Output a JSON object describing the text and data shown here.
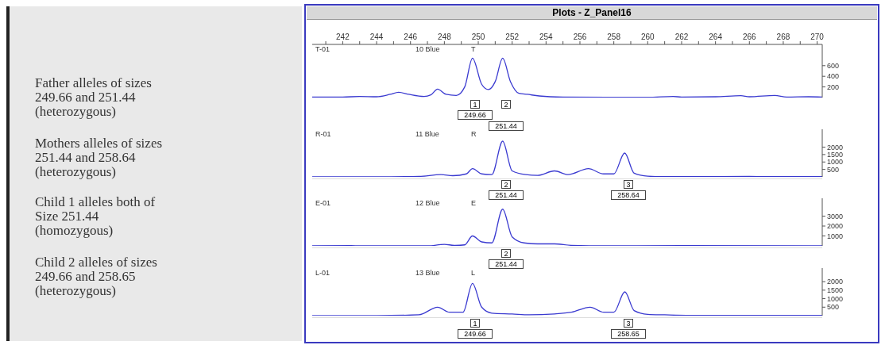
{
  "chart_data": [
    {
      "type": "other",
      "annotations": [
        "Father alleles of sizes\n249.66 and 251.44\n(heterozygous)",
        "Mothers alleles of sizes\n251.44 and 258.64\n(heterozygous)",
        "Child 1 alleles both of\nSize 251.44\n(homozygous)",
        "Child 2 alleles of sizes\n249.66 and 258.65\n(heterozygous)"
      ]
    },
    {
      "type": "line",
      "title": "Plots - Z_Panel16",
      "color": "#3a3ad0",
      "marker": "none",
      "x": [
        240.2,
        242,
        243,
        244,
        244.8,
        245.3,
        245.9,
        246.8,
        247.2,
        247.6,
        248.1,
        248.7,
        249.2,
        249.66,
        250.2,
        250.6,
        251,
        251.44,
        251.9,
        252.4,
        252.9,
        253.6,
        255,
        258,
        260,
        261.5,
        262,
        264,
        265.5,
        266,
        267.5,
        268.2,
        269.5,
        270.3
      ],
      "values": [
        10,
        10,
        20,
        15,
        60,
        100,
        60,
        20,
        50,
        160,
        60,
        40,
        200,
        740,
        250,
        150,
        300,
        740,
        300,
        80,
        60,
        30,
        10,
        5,
        5,
        20,
        10,
        15,
        35,
        15,
        40,
        10,
        15,
        10
      ],
      "xlim": [
        240.2,
        270.3
      ],
      "xticks": [
        {
          "value": 241,
          "label": null
        },
        242,
        {
          "value": 243,
          "label": null
        },
        244,
        {
          "value": 245,
          "label": null
        },
        246,
        {
          "value": 247,
          "label": null
        },
        248,
        {
          "value": 249,
          "label": null
        },
        250,
        {
          "value": 251,
          "label": null
        },
        252,
        {
          "value": 253,
          "label": null
        },
        254,
        {
          "value": 255,
          "label": null
        },
        256,
        {
          "value": 257,
          "label": null
        },
        258,
        {
          "value": 259,
          "label": null
        },
        260,
        {
          "value": 261,
          "label": null
        },
        262,
        {
          "value": 263,
          "label": null
        },
        264,
        {
          "value": 265,
          "label": null
        },
        266,
        {
          "value": 267,
          "label": null
        },
        268,
        {
          "value": 269,
          "label": null
        },
        270
      ],
      "ylim": [
        0,
        1000
      ],
      "yticks": [
        200,
        400,
        600
      ],
      "annotations": [
        "T-01",
        "10 Blue",
        "T",
        "1",
        "249.66",
        "2",
        "251.44"
      ]
    },
    {
      "type": "line",
      "color": "#3a3ad0",
      "marker": "none",
      "tick_labels": "y",
      "x": [
        240.2,
        244,
        246.5,
        247.8,
        248.5,
        249.3,
        249.66,
        250.2,
        250.8,
        251.44,
        252,
        252.8,
        253.5,
        254.5,
        255.3,
        256.5,
        257.4,
        258,
        258.64,
        259.2,
        260,
        261,
        264,
        266,
        267,
        270.3
      ],
      "values": [
        0,
        0,
        30,
        150,
        80,
        200,
        550,
        200,
        150,
        2400,
        400,
        150,
        100,
        400,
        150,
        550,
        200,
        200,
        1600,
        250,
        50,
        20,
        20,
        30,
        20,
        20
      ],
      "xlim": [
        240.2,
        270.3
      ],
      "ylim": [
        0,
        3200
      ],
      "yticks": [
        500,
        1000,
        1500,
        2000
      ],
      "annotations": [
        "R-01",
        "11 Blue",
        "R",
        "2",
        "251.44",
        "3",
        "258.64"
      ]
    },
    {
      "type": "line",
      "color": "#3a3ad0",
      "marker": "none",
      "tick_labels": "y",
      "x": [
        240.2,
        242.5,
        243,
        247,
        248,
        248.6,
        249.2,
        249.66,
        250.2,
        250.8,
        251.44,
        252,
        252.7,
        253.5,
        254.5,
        255.5,
        258,
        262,
        270.3
      ],
      "values": [
        0,
        30,
        0,
        0,
        150,
        50,
        100,
        1000,
        400,
        300,
        3700,
        900,
        300,
        200,
        200,
        50,
        0,
        20,
        0
      ],
      "xlim": [
        240.2,
        270.3
      ],
      "ylim": [
        0,
        4800
      ],
      "yticks": [
        1000,
        2000,
        3000
      ],
      "annotations": [
        "E-01",
        "12 Blue",
        "E",
        "2",
        "251.44"
      ]
    },
    {
      "type": "line",
      "color": "#3a3ad0",
      "marker": "none",
      "tick_labels": "y",
      "x": [
        240.2,
        244,
        246.5,
        247.6,
        248.3,
        249.1,
        249.66,
        250.2,
        250.8,
        252,
        253,
        254.5,
        255.5,
        256.6,
        257.4,
        258,
        258.65,
        259.2,
        260,
        261,
        262.5,
        270.3
      ],
      "values": [
        0,
        0,
        50,
        500,
        200,
        200,
        1900,
        500,
        150,
        100,
        50,
        100,
        200,
        500,
        200,
        200,
        1400,
        300,
        80,
        50,
        20,
        20
      ],
      "xlim": [
        240.2,
        270.3
      ],
      "ylim": [
        0,
        2800
      ],
      "yticks": [
        500,
        1000,
        1500,
        2000
      ],
      "annotations": [
        "L-01",
        "13 Blue",
        "L",
        "1",
        "249.66",
        "3",
        "258.65"
      ]
    }
  ]
}
